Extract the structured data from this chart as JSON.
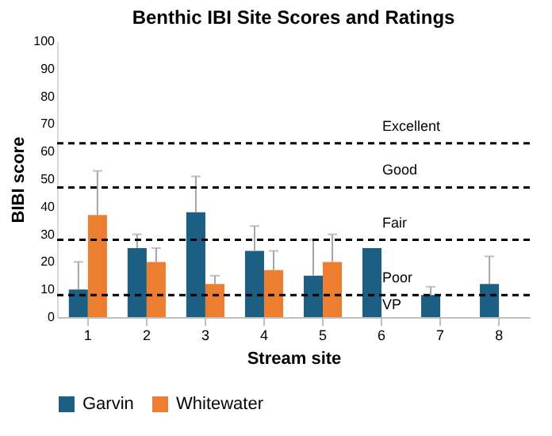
{
  "chart_data": {
    "type": "bar",
    "title": "Benthic IBI Site Scores and Ratings",
    "xlabel": "Stream site",
    "ylabel": "BIBI score",
    "categories": [
      "1",
      "2",
      "3",
      "4",
      "5",
      "6",
      "7",
      "8"
    ],
    "series": [
      {
        "name": "Garvin",
        "color": "#1c5f82",
        "values": [
          10,
          25,
          38,
          24,
          15,
          25,
          8,
          12
        ],
        "errors": [
          [
            10,
            20
          ],
          [
            25,
            30
          ],
          [
            38,
            51
          ],
          [
            24,
            33
          ],
          [
            15,
            28
          ],
          null,
          [
            8,
            11
          ],
          [
            12,
            22
          ]
        ]
      },
      {
        "name": "Whitewater",
        "color": "#ed7d31",
        "values": [
          37,
          20,
          12,
          17,
          20,
          null,
          null,
          null
        ],
        "errors": [
          [
            37,
            53
          ],
          [
            20,
            25
          ],
          [
            12,
            15
          ],
          [
            17,
            24
          ],
          [
            20,
            30
          ],
          null,
          null,
          null
        ]
      }
    ],
    "ylim": [
      0,
      100
    ],
    "yticks": [
      0,
      10,
      20,
      30,
      40,
      50,
      60,
      70,
      80,
      90,
      100
    ],
    "ref_lines": [
      {
        "axis": "y",
        "value": 63,
        "label": "Excellent",
        "line_style": "dashed"
      },
      {
        "axis": "y",
        "value": 47,
        "label": "Good",
        "line_style": "dashed"
      },
      {
        "axis": "y",
        "value": 28,
        "label": "Fair",
        "line_style": "dashed"
      },
      {
        "axis": "y",
        "value": 8,
        "label": "Poor",
        "line_style": "dashed"
      }
    ],
    "annotations": [
      "VP"
    ],
    "grid": false,
    "legend": "bottom"
  }
}
